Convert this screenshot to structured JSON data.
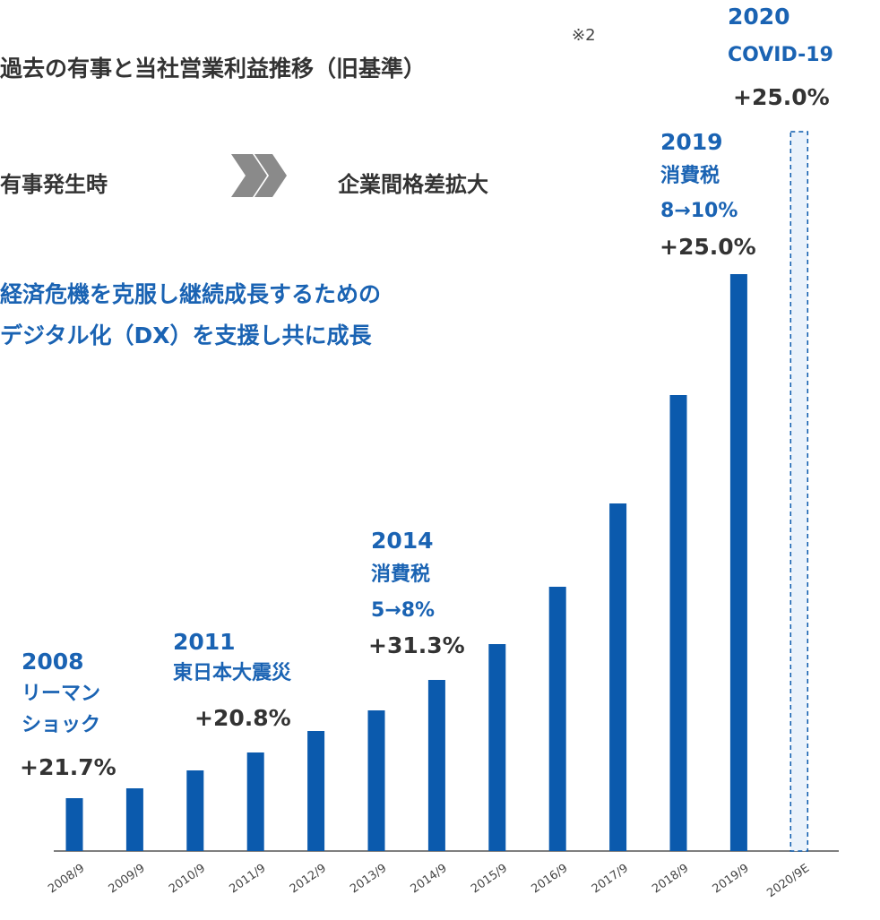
{
  "chart_data": {
    "type": "bar",
    "title": "過去の有事と当社営業利益推移（旧基準）",
    "note_mark": "※2",
    "flow": {
      "from": "有事発生時",
      "to": "企業間格差拡大"
    },
    "message": [
      "経済危機を克服し継続成長するための",
      "デジタル化（DX）を支援し共に成長"
    ],
    "categories": [
      "2008/9",
      "2009/9",
      "2010/9",
      "2011/9",
      "2012/9",
      "2013/9",
      "2014/9",
      "2015/9",
      "2016/9",
      "2017/9",
      "2018/9",
      "2019/9",
      "2020/9E"
    ],
    "values": [
      59,
      70,
      90,
      110,
      134,
      157,
      191,
      231,
      295,
      388,
      509,
      644,
      803
    ],
    "estimate": [
      false,
      false,
      false,
      false,
      false,
      false,
      false,
      false,
      false,
      false,
      false,
      false,
      true
    ],
    "color": "#0b5aad",
    "ylim": [
      0,
      820
    ],
    "events": [
      {
        "lines": [
          "2008",
          "リーマン",
          "ショック"
        ],
        "change": "+21.7%"
      },
      {
        "lines": [
          "2011",
          "東日本大震災"
        ],
        "change": "+20.8%"
      },
      {
        "lines": [
          "2014",
          "消費税",
          "5→8%"
        ],
        "change": "+31.3%"
      },
      {
        "lines": [
          "2019",
          "消費税",
          "8→10%"
        ],
        "change": "+25.0%"
      },
      {
        "lines": [
          "2020",
          "COVID-19"
        ],
        "change": "+25.0%"
      }
    ]
  }
}
